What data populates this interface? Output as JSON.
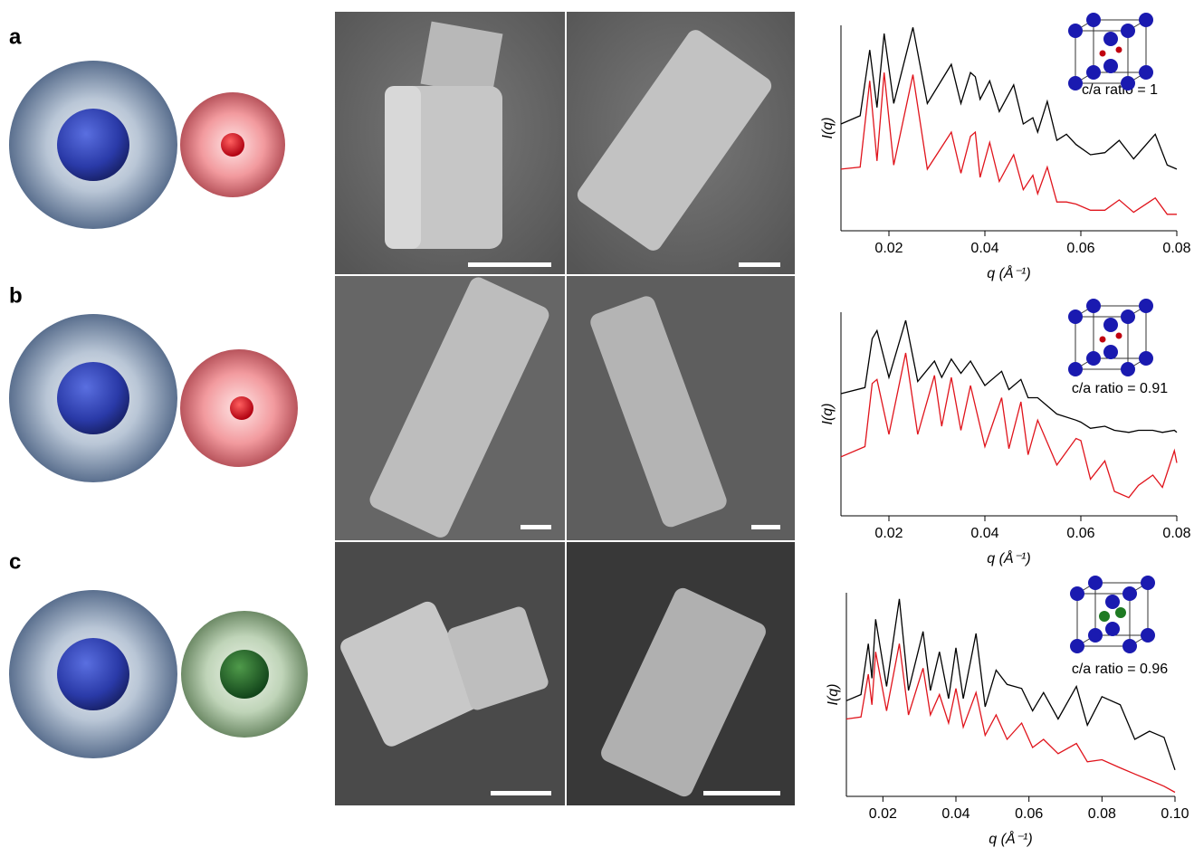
{
  "panel_labels": [
    "a",
    "b",
    "c"
  ],
  "chart_data": [
    {
      "type": "line",
      "x_label": "q (Å⁻¹)",
      "y_label": "I(q)",
      "annotation": "c/a ratio = 1",
      "xlim": [
        0.01,
        0.08
      ],
      "xticks": [
        0.02,
        0.04,
        0.06,
        0.08
      ],
      "ylim": [
        0,
        100
      ],
      "x": [
        0.01,
        0.014,
        0.016,
        0.0175,
        0.019,
        0.021,
        0.025,
        0.028,
        0.033,
        0.035,
        0.037,
        0.038,
        0.039,
        0.041,
        0.043,
        0.046,
        0.048,
        0.05,
        0.051,
        0.053,
        0.055,
        0.057,
        0.059,
        0.062,
        0.065,
        0.068,
        0.071,
        0.0755,
        0.078,
        0.08
      ],
      "series": [
        {
          "color": "#000000",
          "values": [
            52,
            56,
            88,
            60,
            96,
            62,
            99,
            62,
            81,
            62,
            77,
            75,
            64,
            73,
            58,
            71,
            52,
            55,
            48,
            63,
            44,
            47,
            42,
            37,
            38,
            44,
            35,
            47,
            32,
            30
          ]
        },
        {
          "color": "#e0141c",
          "values": [
            30,
            31,
            73,
            34,
            77,
            32,
            76,
            30,
            48,
            28,
            46,
            48,
            26,
            43,
            24,
            37,
            20,
            27,
            18,
            31,
            14,
            14,
            13,
            10,
            10,
            15,
            9,
            16,
            8,
            8
          ]
        }
      ]
    },
    {
      "type": "line",
      "x_label": "q (Å⁻¹)",
      "y_label": "I(q)",
      "annotation": "c/a ratio = 0.91",
      "xlim": [
        0.01,
        0.08
      ],
      "xticks": [
        0.02,
        0.04,
        0.06,
        0.08
      ],
      "ylim": [
        0,
        100
      ],
      "x": [
        0.01,
        0.015,
        0.0165,
        0.0175,
        0.02,
        0.0235,
        0.026,
        0.0295,
        0.031,
        0.033,
        0.035,
        0.037,
        0.04,
        0.0435,
        0.045,
        0.0475,
        0.049,
        0.051,
        0.055,
        0.059,
        0.06,
        0.062,
        0.065,
        0.067,
        0.07,
        0.072,
        0.075,
        0.077,
        0.0795,
        0.08
      ],
      "series": [
        {
          "color": "#000000",
          "values": [
            60,
            63,
            87,
            91,
            68,
            96,
            66,
            76,
            68,
            77,
            70,
            76,
            64,
            71,
            62,
            67,
            58,
            58,
            50,
            47,
            46,
            43,
            44,
            42,
            41,
            42,
            42,
            41,
            42,
            41
          ]
        },
        {
          "color": "#e0141c",
          "values": [
            29,
            34,
            65,
            67,
            40,
            80,
            40,
            69,
            44,
            68,
            42,
            64,
            34,
            58,
            33,
            56,
            30,
            47,
            25,
            38,
            37,
            18,
            27,
            12,
            9,
            15,
            20,
            14,
            32,
            26
          ]
        }
      ]
    },
    {
      "type": "line",
      "x_label": "q (Å⁻¹)",
      "y_label": "I(q)",
      "annotation": "c/a ratio = 0.96",
      "xlim": [
        0.01,
        0.1
      ],
      "xticks": [
        0.02,
        0.04,
        0.06,
        0.08,
        {
          "value": 0.1,
          "label": "0.10"
        }
      ],
      "ylim": [
        0,
        100
      ],
      "x": [
        0.01,
        0.014,
        0.016,
        0.017,
        0.018,
        0.021,
        0.0245,
        0.027,
        0.031,
        0.033,
        0.0355,
        0.038,
        0.04,
        0.042,
        0.0455,
        0.048,
        0.051,
        0.054,
        0.058,
        0.061,
        0.064,
        0.068,
        0.073,
        0.076,
        0.08,
        0.085,
        0.089,
        0.093,
        0.097,
        0.1
      ],
      "series": [
        {
          "color": "#000000",
          "values": [
            47,
            50,
            75,
            58,
            87,
            54,
            97,
            52,
            81,
            52,
            71,
            48,
            73,
            48,
            80,
            44,
            62,
            55,
            53,
            42,
            51,
            38,
            54,
            35,
            49,
            45,
            28,
            32,
            29,
            13
          ]
        },
        {
          "color": "#e0141c",
          "values": [
            38,
            39,
            60,
            45,
            71,
            42,
            75,
            40,
            63,
            40,
            50,
            36,
            53,
            34,
            51,
            30,
            40,
            28,
            36,
            24,
            28,
            21,
            26,
            17,
            18,
            14,
            11,
            8,
            5,
            2
          ]
        }
      ]
    }
  ]
}
